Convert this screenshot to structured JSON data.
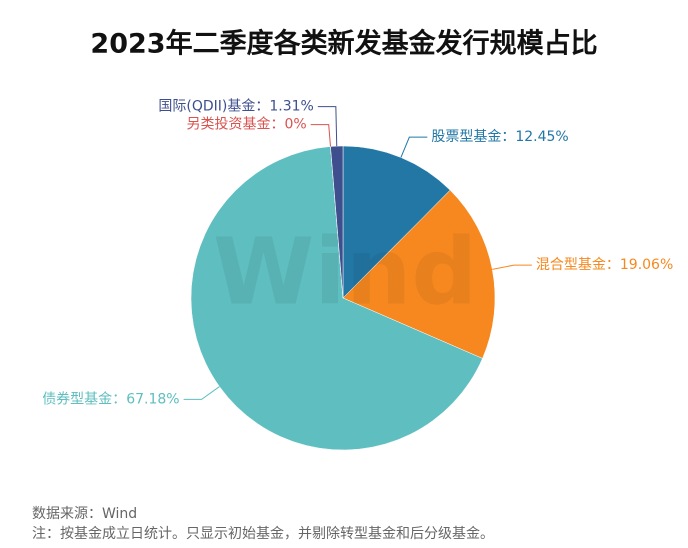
{
  "chart_data": {
    "type": "pie",
    "title": "2023年二季度各类新发基金发行规模占比",
    "watermark": "Wind",
    "categories": [
      "股票型基金",
      "混合型基金",
      "债券型基金",
      "另类投资基金",
      "国际(QDII)基金"
    ],
    "values": [
      12.45,
      19.06,
      67.18,
      0,
      1.31
    ],
    "value_labels": [
      "12.45%",
      "19.06%",
      "67.18%",
      "0%",
      "1.31%"
    ],
    "label_separator": "：",
    "colors": [
      "#2277a5",
      "#f6881f",
      "#5ebec0",
      "#d9534f",
      "#3f4f8e"
    ],
    "label_colors": [
      "#2277a5",
      "#f6881f",
      "#5ebec0",
      "#d9534f",
      "#3f4f8e"
    ],
    "source": "数据来源：Wind",
    "note": "注：按基金成立日统计。只显示初始基金，并剔除转型基金和后分级基金。"
  }
}
